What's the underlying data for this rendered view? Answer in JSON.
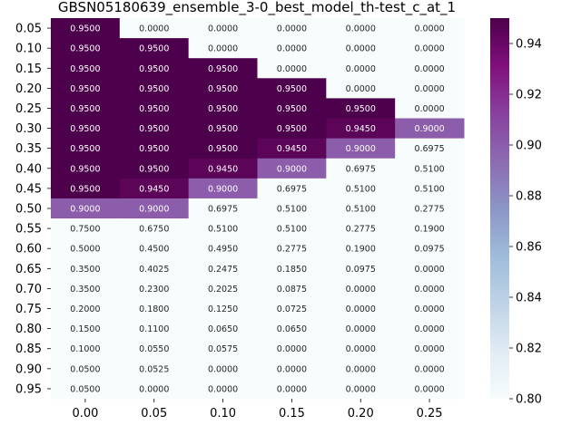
{
  "chart_data": {
    "type": "heatmap",
    "title": "GBSN05180639_ensemble_3-0_best_model_th-test_c_at_1",
    "xlabel": "",
    "ylabel": "",
    "x": [
      "0.00",
      "0.05",
      "0.10",
      "0.15",
      "0.20",
      "0.25"
    ],
    "y": [
      "0.05",
      "0.10",
      "0.15",
      "0.20",
      "0.25",
      "0.30",
      "0.35",
      "0.40",
      "0.45",
      "0.50",
      "0.55",
      "0.60",
      "0.65",
      "0.70",
      "0.75",
      "0.80",
      "0.85",
      "0.90",
      "0.95"
    ],
    "values": [
      [
        0.95,
        0.0,
        0.0,
        0.0,
        0.0,
        0.0
      ],
      [
        0.95,
        0.95,
        0.0,
        0.0,
        0.0,
        0.0
      ],
      [
        0.95,
        0.95,
        0.95,
        0.0,
        0.0,
        0.0
      ],
      [
        0.95,
        0.95,
        0.95,
        0.95,
        0.0,
        0.0
      ],
      [
        0.95,
        0.95,
        0.95,
        0.95,
        0.95,
        0.0
      ],
      [
        0.95,
        0.95,
        0.95,
        0.95,
        0.945,
        0.9
      ],
      [
        0.95,
        0.95,
        0.95,
        0.945,
        0.9,
        0.6975
      ],
      [
        0.95,
        0.95,
        0.945,
        0.9,
        0.6975,
        0.51
      ],
      [
        0.95,
        0.945,
        0.9,
        0.6975,
        0.51,
        0.51
      ],
      [
        0.9,
        0.9,
        0.6975,
        0.51,
        0.51,
        0.2775
      ],
      [
        0.75,
        0.675,
        0.51,
        0.51,
        0.2775,
        0.19
      ],
      [
        0.5,
        0.45,
        0.495,
        0.2775,
        0.19,
        0.0975
      ],
      [
        0.35,
        0.4025,
        0.2475,
        0.185,
        0.0975,
        0.0
      ],
      [
        0.35,
        0.23,
        0.2025,
        0.0875,
        0.0,
        0.0
      ],
      [
        0.2,
        0.18,
        0.125,
        0.0725,
        0.0,
        0.0
      ],
      [
        0.15,
        0.11,
        0.065,
        0.065,
        0.0,
        0.0
      ],
      [
        0.1,
        0.055,
        0.0575,
        0.0,
        0.0,
        0.0
      ],
      [
        0.05,
        0.0525,
        0.0,
        0.0,
        0.0,
        0.0
      ],
      [
        0.05,
        0.0,
        0.0,
        0.0,
        0.0,
        0.0
      ]
    ],
    "colormap": "BuPu",
    "vmin": 0.8,
    "vmax": 0.95,
    "colorbar_ticks": [
      "0.80",
      "0.82",
      "0.84",
      "0.86",
      "0.88",
      "0.90",
      "0.92",
      "0.94"
    ],
    "grid": false,
    "legend": "colorbar right"
  }
}
